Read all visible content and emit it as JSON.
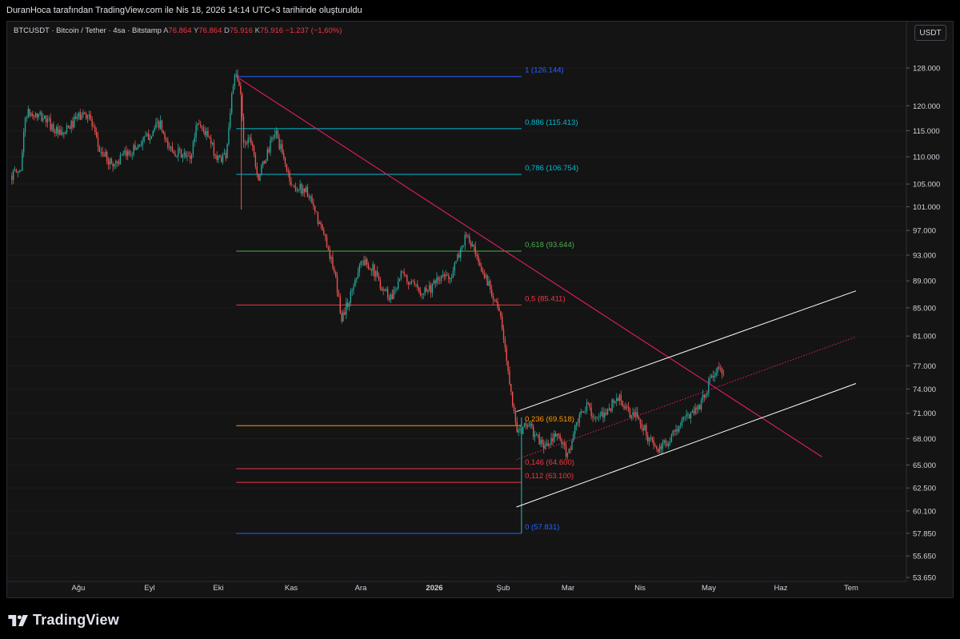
{
  "header": {
    "caption": "DuranHoca tarafından TradingView.com ile Nis 18, 2026 14:14 UTC+3 tarihinde oluşturuldu"
  },
  "legend": {
    "symbol": "BTCUSDT · Bitcoin / Tether · 4sa · Bitstamp",
    "open_label": "A",
    "open_value": "76.864",
    "high_label": "Y",
    "high_value": "76.864",
    "low_label": "D",
    "low_value": "75.916",
    "close_label": "K",
    "close_value": "75.916",
    "change": "−1.237 (−1,60%)"
  },
  "currency_button": "USDT",
  "footer": {
    "brand": "TradingView"
  },
  "colors": {
    "background": "#141414",
    "up": "#26a69a",
    "down": "#ef5350",
    "trendline": "#e91e63",
    "channel": "#ffffff"
  },
  "chart_data": {
    "type": "candlestick",
    "symbol": "BTCUSDT",
    "timeframe": "4sa",
    "y_scale": "log",
    "ylim": [
      53650,
      131000
    ],
    "y_ticks": [
      "128.000",
      "120.000",
      "115.000",
      "110.000",
      "105.000",
      "101.000",
      "97.000",
      "93.000",
      "89.000",
      "85.000",
      "81.000",
      "77.000",
      "74.000",
      "71.000",
      "68.000",
      "65.000",
      "62.500",
      "60.100",
      "57.850",
      "55.650",
      "53.650"
    ],
    "x_ticks": [
      "Ağu",
      "Eyl",
      "Eki",
      "Kas",
      "Ara",
      "2026",
      "Şub",
      "Mar",
      "Nis",
      "May",
      "Haz",
      "Tem"
    ],
    "price_path": [
      [
        0,
        106500
      ],
      [
        0.3,
        107500
      ],
      [
        0.45,
        118500
      ],
      [
        1,
        117500
      ],
      [
        1.5,
        113800
      ],
      [
        2,
        117800
      ],
      [
        2.3,
        118500
      ],
      [
        2.6,
        111500
      ],
      [
        3,
        108500
      ],
      [
        3.5,
        110800
      ],
      [
        4,
        113500
      ],
      [
        4.4,
        116500
      ],
      [
        4.6,
        112000
      ],
      [
        5,
        110500
      ],
      [
        5.3,
        109500
      ],
      [
        5.5,
        117000
      ],
      [
        5.8,
        114000
      ],
      [
        6.1,
        109500
      ],
      [
        6.35,
        110500
      ],
      [
        6.55,
        124500
      ],
      [
        6.65,
        126144
      ],
      [
        6.8,
        122000
      ],
      [
        6.85,
        113000
      ],
      [
        7.1,
        113500
      ],
      [
        7.3,
        106000
      ],
      [
        7.5,
        109500
      ],
      [
        7.8,
        115000
      ],
      [
        8.05,
        109500
      ],
      [
        8.3,
        104500
      ],
      [
        8.7,
        104000
      ],
      [
        9,
        99500
      ],
      [
        9.35,
        94500
      ],
      [
        9.6,
        88500
      ],
      [
        9.75,
        83500
      ],
      [
        10,
        86500
      ],
      [
        10.3,
        92000
      ],
      [
        10.6,
        91500
      ],
      [
        10.9,
        88500
      ],
      [
        11.2,
        86500
      ],
      [
        11.5,
        90000
      ],
      [
        12,
        87500
      ],
      [
        12.4,
        88000
      ],
      [
        12.7,
        89500
      ],
      [
        13,
        90000
      ],
      [
        13.4,
        96000
      ],
      [
        13.6,
        94500
      ],
      [
        13.8,
        91000
      ],
      [
        14,
        89500
      ],
      [
        14.3,
        86000
      ],
      [
        14.45,
        83000
      ],
      [
        14.6,
        78000
      ],
      [
        14.75,
        74000
      ],
      [
        14.85,
        70000
      ],
      [
        15,
        68500
      ],
      [
        15.2,
        70000
      ],
      [
        15.5,
        68000
      ],
      [
        15.8,
        67000
      ],
      [
        16.1,
        68500
      ],
      [
        16.4,
        66000
      ],
      [
        16.7,
        70000
      ],
      [
        17,
        72000
      ],
      [
        17.3,
        70000
      ],
      [
        17.6,
        71500
      ],
      [
        17.9,
        73000
      ],
      [
        18.2,
        71000
      ],
      [
        18.5,
        70500
      ],
      [
        18.8,
        68000
      ],
      [
        19.1,
        66500
      ],
      [
        19.4,
        68000
      ],
      [
        19.7,
        69500
      ],
      [
        20,
        71000
      ],
      [
        20.3,
        72000
      ],
      [
        20.6,
        75000
      ],
      [
        20.8,
        76500
      ],
      [
        21,
        75916
      ]
    ],
    "candle_count": 480,
    "fibonacci": [
      {
        "level": "1",
        "value": 126144,
        "label": "1 (126.144)",
        "color": "#2962ff"
      },
      {
        "level": "0.886",
        "value": 115413,
        "label": "0,886 (115.413)",
        "color": "#00bcd4"
      },
      {
        "level": "0.786",
        "value": 106754,
        "label": "0,786 (106.754)",
        "color": "#00bcd4"
      },
      {
        "level": "0.618",
        "value": 93644,
        "label": "0,618 (93.644)",
        "color": "#4caf50"
      },
      {
        "level": "0.5",
        "value": 85411,
        "label": "0,5 (85.411)",
        "color": "#f23645"
      },
      {
        "level": "0.236",
        "value": 69518,
        "label": "0,236 (69.518)",
        "color": "#ff9800"
      },
      {
        "level": "0.146",
        "value": 64600,
        "label": "0,146 (64.600)",
        "color": "#f23645"
      },
      {
        "level": "0.112",
        "value": 63100,
        "label": "0,112 (63.100)",
        "color": "#f23645"
      },
      {
        "level": "0",
        "value": 57831,
        "label": "0 (57.831)",
        "color": "#2962ff"
      }
    ],
    "trendline": {
      "from": [
        6.65,
        126144
      ],
      "to": [
        23.9,
        65900
      ]
    },
    "channel": {
      "upper": {
        "from": [
          14.9,
          71200
        ],
        "to": [
          24.9,
          87500
        ]
      },
      "lower": {
        "from": [
          14.9,
          60500
        ],
        "to": [
          24.9,
          74700
        ]
      },
      "mid": {
        "from": [
          14.9,
          65600
        ],
        "to": [
          24.9,
          80900
        ]
      }
    },
    "grid": true
  }
}
